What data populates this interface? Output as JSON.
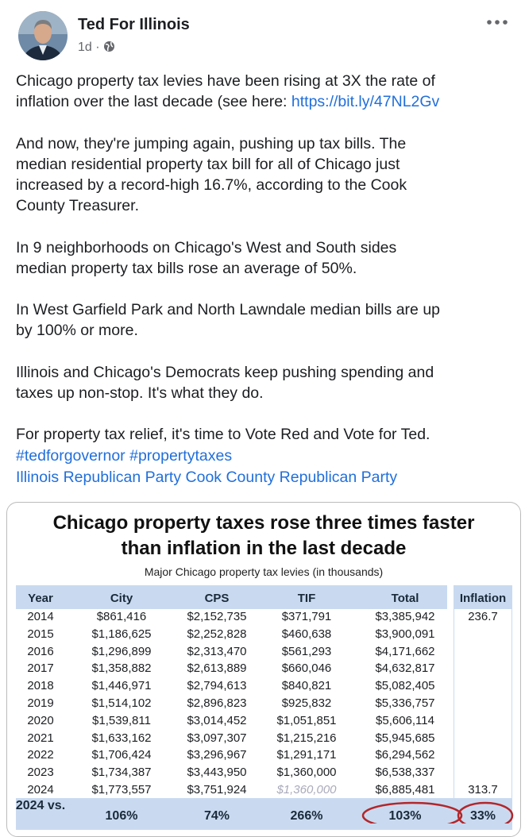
{
  "post": {
    "author": "Ted For Illinois",
    "time": "1d",
    "separator": "·",
    "paragraphs": [
      [
        "Chicago property tax levies have been rising at 3X the rate of"
      ],
      [
        "And now, they're jumping again, pushing up tax bills. The",
        "median residential property tax bill for all of Chicago just",
        "increased by a record-high 16.7%, according to the Cook",
        "County Treasurer."
      ],
      [
        "In 9 neighborhoods on Chicago's West and South sides",
        "median property tax bills rose an average of 50%."
      ],
      [
        "In West Garfield Park and North Lawndale median bills are up",
        "by 100% or more."
      ],
      [
        "Illinois and Chicago's Democrats keep pushing spending and",
        "taxes up non-stop. It's what they do."
      ],
      [
        "For property tax relief, it's time to Vote Red and Vote for Ted."
      ]
    ],
    "link_prefix": "inflation over the last decade (see here: ",
    "link": "https://bit.ly/47NL2Gv",
    "hashtags": [
      "#tedforgovernor",
      "#propertytaxes"
    ],
    "tags": [
      "Illinois Republican Party",
      "Cook County Republican Party"
    ]
  },
  "table": {
    "title": [
      "Chicago property taxes rose three times faster",
      "than inflation in the last decade"
    ],
    "subtitle": "Major Chicago property tax levies (in thousands)",
    "headers": [
      "Year",
      "City",
      "CPS",
      "TIF",
      "Total",
      "Inflation"
    ],
    "rows": [
      [
        "2014",
        "$861,416",
        "$2,152,735",
        "$371,791",
        "$3,385,942",
        "236.7"
      ],
      [
        "2015",
        "$1,186,625",
        "$2,252,828",
        "$460,638",
        "$3,900,091",
        null
      ],
      [
        "2016",
        "$1,296,899",
        "$2,313,470",
        "$561,293",
        "$4,171,662",
        null
      ],
      [
        "2017",
        "$1,358,882",
        "$2,613,889",
        "$660,046",
        "$4,632,817",
        null
      ],
      [
        "2018",
        "$1,446,971",
        "$2,794,613",
        "$840,821",
        "$5,082,405",
        null
      ],
      [
        "2019",
        "$1,514,102",
        "$2,896,823",
        "$925,832",
        "$5,336,757",
        null
      ],
      [
        "2020",
        "$1,539,811",
        "$3,014,452",
        "$1,051,851",
        "$5,606,114",
        null
      ],
      [
        "2021",
        "$1,633,162",
        "$3,097,307",
        "$1,215,216",
        "$5,945,685",
        null
      ],
      [
        "2022",
        "$1,706,424",
        "$3,296,967",
        "$1,291,171",
        "$6,294,562",
        null
      ],
      [
        "2023",
        "$1,734,387",
        "$3,443,950",
        "$1,360,000",
        "$6,538,337",
        null
      ],
      [
        "2024",
        "$1,773,557",
        "$3,751,924",
        "$1,360,000",
        "$6,885,481",
        "313.7"
      ]
    ],
    "summary": [
      "2024 vs.",
      "106%",
      "74%",
      "266%",
      "103%",
      "33%"
    ]
  }
}
